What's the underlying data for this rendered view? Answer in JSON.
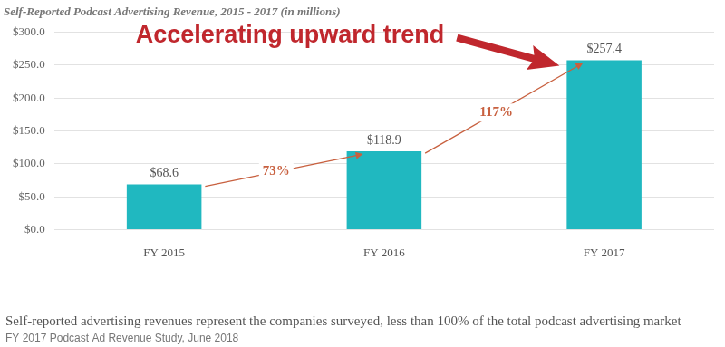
{
  "chart_data": {
    "type": "bar",
    "title": "Self-Reported Podcast Advertising Revenue, 2015 - 2017 (in millions)",
    "categories": [
      "FY 2015",
      "FY 2016",
      "FY 2017"
    ],
    "values": [
      68.6,
      118.9,
      257.4
    ],
    "value_labels": [
      "$68.6",
      "$118.9",
      "$257.4"
    ],
    "data_labels": true,
    "color": "#20b8c0",
    "ylim": [
      0,
      300
    ],
    "yticks": [
      {
        "value": 0,
        "label": "$0.0"
      },
      {
        "value": 50,
        "label": "$50.0"
      },
      {
        "value": 100,
        "label": "$100.0"
      },
      {
        "value": 150,
        "label": "$150.0"
      },
      {
        "value": 200,
        "label": "$200.0"
      },
      {
        "value": 250,
        "label": "$250.0"
      },
      {
        "value": 300,
        "label": "$300.0"
      }
    ],
    "grid": true,
    "annotation": "Accelerating upward trend",
    "growth_labels": [
      "73%",
      "117%"
    ],
    "footnote": "Self-reported advertising revenues represent the companies surveyed, less than 100% of the total podcast advertising market",
    "source": "FY 2017 Podcast Ad Revenue Study, June 2018"
  }
}
